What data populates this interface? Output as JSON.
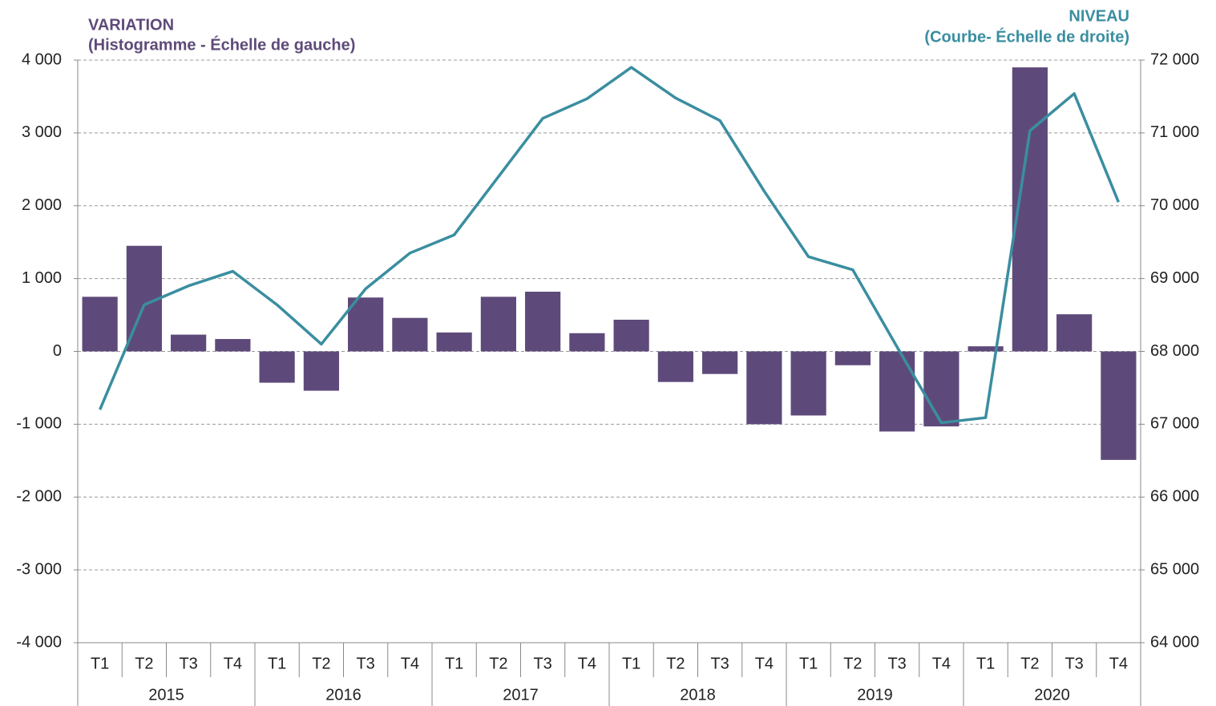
{
  "chart_data": {
    "type": "combo",
    "y_title": "VARIATION",
    "y_subtitle": "(Histogramme - Échelle de gauche)",
    "y2_title": "NIVEAU",
    "y2_subtitle": "(Courbe- Échelle de droite)",
    "categories": [
      "T1",
      "T2",
      "T3",
      "T4",
      "T1",
      "T2",
      "T3",
      "T4",
      "T1",
      "T2",
      "T3",
      "T4",
      "T1",
      "T2",
      "T3",
      "T4",
      "T1",
      "T2",
      "T3",
      "T4",
      "T1",
      "T2",
      "T3",
      "T4"
    ],
    "years": [
      "2015",
      "2016",
      "2017",
      "2018",
      "2019",
      "2020"
    ],
    "series": [
      {
        "type": "bar",
        "color": "#5e4a7a",
        "values": [
          750,
          1450,
          230,
          170,
          -430,
          -540,
          740,
          460,
          260,
          750,
          820,
          250,
          435,
          -420,
          -310,
          -1000,
          -880,
          -190,
          -1100,
          -1030,
          70,
          3900,
          510,
          -1490
        ]
      },
      {
        "type": "line",
        "axis": "y2",
        "color": "#3a8ea0",
        "values": [
          67200,
          68640,
          68900,
          69100,
          68640,
          68100,
          68860,
          69350,
          69600,
          70400,
          71200,
          71470,
          71900,
          71480,
          71170,
          70200,
          69300,
          69120,
          68060,
          67020,
          67090,
          71030,
          71540,
          70050
        ]
      }
    ],
    "ylim": [
      -4000,
      4000
    ],
    "yticks": [
      {
        "value": -4000,
        "label": "-4 000"
      },
      {
        "value": -3000,
        "label": "-3 000"
      },
      {
        "value": -2000,
        "label": "-2 000"
      },
      {
        "value": -1000,
        "label": "-1 000"
      },
      0,
      {
        "value": 1000,
        "label": "1 000"
      },
      {
        "value": 2000,
        "label": "2 000"
      },
      {
        "value": 3000,
        "label": "3 000"
      },
      {
        "value": 4000,
        "label": "4 000"
      }
    ],
    "y2lim": [
      64000,
      72000
    ],
    "y2ticks": [
      {
        "value": 64000,
        "label": "64 000"
      },
      {
        "value": 65000,
        "label": "65 000"
      },
      {
        "value": 66000,
        "label": "66 000"
      },
      {
        "value": 67000,
        "label": "67 000"
      },
      {
        "value": 68000,
        "label": "68 000"
      },
      {
        "value": 69000,
        "label": "69 000"
      },
      {
        "value": 70000,
        "label": "70 000"
      },
      {
        "value": 71000,
        "label": "71 000"
      },
      {
        "value": 72000,
        "label": "72 000"
      }
    ],
    "grid": true
  }
}
